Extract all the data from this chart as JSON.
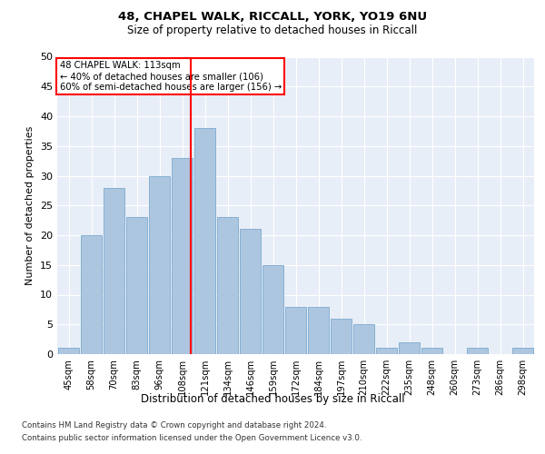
{
  "title1": "48, CHAPEL WALK, RICCALL, YORK, YO19 6NU",
  "title2": "Size of property relative to detached houses in Riccall",
  "xlabel": "Distribution of detached houses by size in Riccall",
  "ylabel": "Number of detached properties",
  "categories": [
    "45sqm",
    "58sqm",
    "70sqm",
    "83sqm",
    "96sqm",
    "108sqm",
    "121sqm",
    "134sqm",
    "146sqm",
    "159sqm",
    "172sqm",
    "184sqm",
    "197sqm",
    "210sqm",
    "222sqm",
    "235sqm",
    "248sqm",
    "260sqm",
    "273sqm",
    "286sqm",
    "298sqm"
  ],
  "values": [
    1,
    20,
    28,
    23,
    30,
    33,
    38,
    23,
    21,
    15,
    8,
    8,
    6,
    5,
    1,
    2,
    1,
    0,
    1,
    0,
    1
  ],
  "bar_color": "#adc6e0",
  "bar_edge_color": "#7aaacf",
  "marker_label": "48 CHAPEL WALK: 113sqm",
  "annotation_line1": "← 40% of detached houses are smaller (106)",
  "annotation_line2": "60% of semi-detached houses are larger (156) →",
  "vline_index": 5.385,
  "ylim": [
    0,
    50
  ],
  "yticks": [
    0,
    5,
    10,
    15,
    20,
    25,
    30,
    35,
    40,
    45,
    50
  ],
  "plot_bg_color": "#e8eef7",
  "footer1": "Contains HM Land Registry data © Crown copyright and database right 2024.",
  "footer2": "Contains public sector information licensed under the Open Government Licence v3.0."
}
